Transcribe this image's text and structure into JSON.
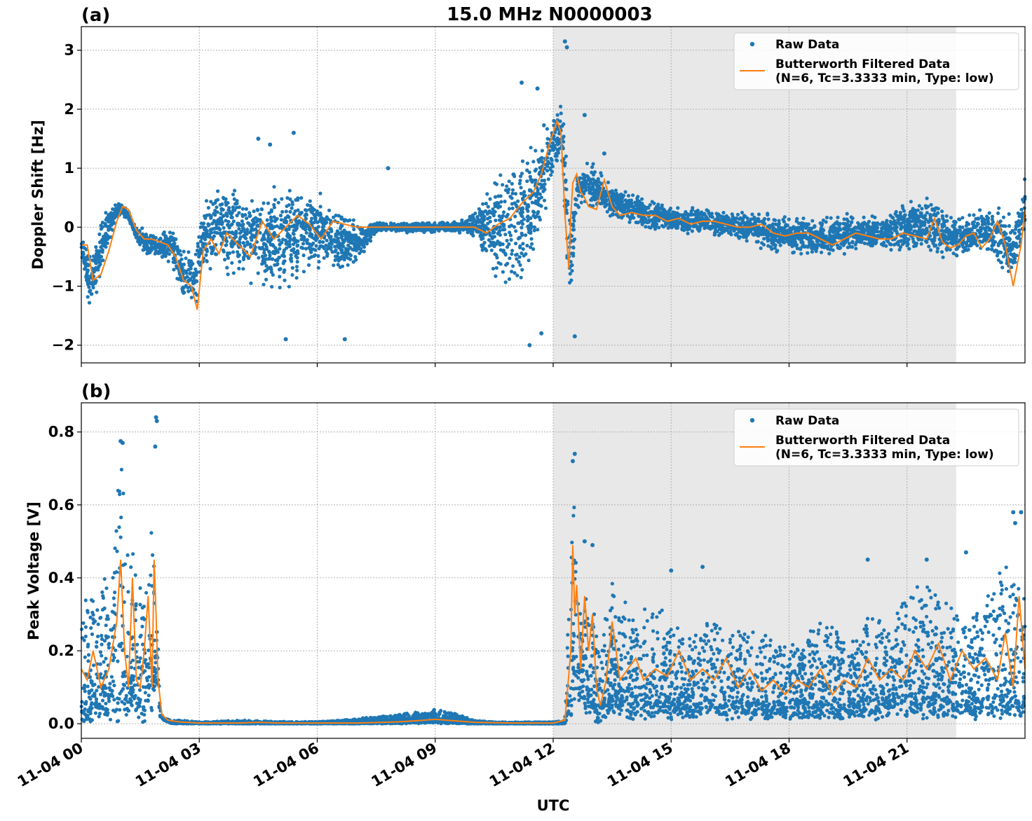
{
  "figure_title": "15.0 MHz N0000003",
  "xlabel": "UTC",
  "x_tick_labels": [
    "11-04 00",
    "11-04 03",
    "11-04 06",
    "11-04 09",
    "11-04 12",
    "11-04 15",
    "11-04 18",
    "11-04 21"
  ],
  "colors": {
    "raw": "#1f77b4",
    "filtered": "#ff7f0e",
    "shade": "#e8e8e8",
    "grid": "#b0b0b0"
  },
  "chart_data": [
    {
      "type": "scatter",
      "panel_label": "(a)",
      "title": "15.0 MHz N0000003",
      "xlabel": "UTC",
      "ylabel": "Doppler Shift [Hz]",
      "xlim_hours": [
        0,
        24
      ],
      "ylim": [
        -2.3,
        3.4
      ],
      "yticks": [
        -2,
        -1,
        0,
        1,
        2,
        3
      ],
      "ytick_labels": [
        "−2",
        "−1",
        "0",
        "1",
        "2",
        "3"
      ],
      "shaded_region_hours": [
        12.0,
        22.25
      ],
      "grid": true,
      "legend_position": "top-right",
      "legend": [
        "Raw Data",
        "Butterworth Filtered Data",
        "(N=6, Tc=3.3333 min, Type: low)"
      ],
      "series": [
        {
          "name": "Raw Data",
          "kind": "points",
          "envelope": {
            "x": [
              0,
              0.2,
              0.4,
              0.6,
              0.8,
              1.0,
              1.2,
              1.4,
              1.6,
              2.0,
              2.3,
              2.6,
              2.9,
              3.1,
              3.5,
              4.0,
              4.5,
              5.0,
              5.5,
              6.0,
              6.5,
              7.0,
              7.5,
              8.0,
              8.5,
              9.0,
              9.5,
              10.0,
              10.5,
              11.0,
              11.5,
              11.9,
              12.2,
              12.35,
              12.45,
              12.6,
              12.9,
              13.5,
              14.0,
              14.5,
              15.0,
              15.5,
              16.0,
              16.5,
              17.0,
              17.5,
              18.0,
              18.5,
              19.0,
              19.5,
              20.0,
              20.5,
              21.0,
              21.5,
              22.0,
              22.5,
              23.0,
              23.4,
              23.7,
              24.0
            ],
            "low": [
              -0.6,
              -1.5,
              -1.2,
              -0.6,
              -0.1,
              0.2,
              0.1,
              -0.3,
              -0.5,
              -0.6,
              -0.7,
              -1.4,
              -1.6,
              -0.8,
              -0.8,
              -1.0,
              -1.1,
              -1.4,
              -1.0,
              -0.8,
              -0.9,
              -0.8,
              -0.1,
              -0.1,
              -0.1,
              -0.1,
              -0.1,
              -0.2,
              -1.0,
              -1.2,
              -0.8,
              0.5,
              1.0,
              -0.8,
              -1.5,
              0.3,
              0.3,
              0.1,
              0.0,
              -0.1,
              -0.1,
              -0.2,
              -0.2,
              -0.2,
              -0.3,
              -0.5,
              -0.5,
              -0.6,
              -0.6,
              -0.5,
              -0.4,
              -0.5,
              -0.5,
              -0.5,
              -0.6,
              -0.6,
              -0.5,
              -0.9,
              -1.1,
              -0.1
            ],
            "high": [
              0.0,
              -0.4,
              0.0,
              0.3,
              0.45,
              0.45,
              0.3,
              0.05,
              0.0,
              -0.1,
              0.1,
              -0.3,
              -0.2,
              0.5,
              0.8,
              0.8,
              0.9,
              0.9,
              0.8,
              0.7,
              0.4,
              0.2,
              0.1,
              0.1,
              0.1,
              0.1,
              0.1,
              0.3,
              0.9,
              1.4,
              1.6,
              2.0,
              2.3,
              1.5,
              0.2,
              1.0,
              1.2,
              0.8,
              0.6,
              0.5,
              0.4,
              0.4,
              0.4,
              0.3,
              0.3,
              0.3,
              0.2,
              0.3,
              0.2,
              0.3,
              0.2,
              0.3,
              0.5,
              0.6,
              0.3,
              0.3,
              0.4,
              0.5,
              0.3,
              0.9
            ]
          },
          "outliers": [
            [
              4.5,
              1.5
            ],
            [
              4.8,
              1.4
            ],
            [
              5.4,
              1.6
            ],
            [
              5.2,
              -1.9
            ],
            [
              6.7,
              -1.9
            ],
            [
              7.8,
              1.0
            ],
            [
              11.2,
              2.45
            ],
            [
              11.6,
              2.35
            ],
            [
              11.4,
              -2.0
            ],
            [
              11.7,
              -1.8
            ],
            [
              12.3,
              3.15
            ],
            [
              12.35,
              3.05
            ],
            [
              12.55,
              -1.85
            ],
            [
              12.8,
              1.9
            ],
            [
              13.3,
              1.25
            ]
          ]
        },
        {
          "name": "Butterworth Filtered Data",
          "kind": "line",
          "x": [
            0,
            0.15,
            0.3,
            0.5,
            0.7,
            0.9,
            1.05,
            1.2,
            1.4,
            1.6,
            1.8,
            2.0,
            2.2,
            2.4,
            2.6,
            2.8,
            2.95,
            3.1,
            3.3,
            3.5,
            3.7,
            4.0,
            4.3,
            4.6,
            4.9,
            5.2,
            5.5,
            5.8,
            6.1,
            6.4,
            6.7,
            7.0,
            7.5,
            8.0,
            8.5,
            9.0,
            9.5,
            10.0,
            10.3,
            10.6,
            10.9,
            11.2,
            11.5,
            11.7,
            11.9,
            12.1,
            12.2,
            12.3,
            12.4,
            12.45,
            12.5,
            12.6,
            12.7,
            12.8,
            12.9,
            13.1,
            13.3,
            13.5,
            13.7,
            14.0,
            14.3,
            14.6,
            14.9,
            15.2,
            15.5,
            15.8,
            16.1,
            16.4,
            16.7,
            17.0,
            17.3,
            17.6,
            17.9,
            18.2,
            18.5,
            18.8,
            19.1,
            19.4,
            19.7,
            20.0,
            20.3,
            20.6,
            20.9,
            21.2,
            21.5,
            21.7,
            21.9,
            22.1,
            22.3,
            22.5,
            22.7,
            22.9,
            23.1,
            23.3,
            23.5,
            23.7,
            23.9,
            24.0
          ],
          "y": [
            -0.3,
            -0.3,
            -0.9,
            -0.8,
            -0.4,
            0.1,
            0.35,
            0.3,
            -0.05,
            -0.2,
            -0.2,
            -0.25,
            -0.3,
            -0.5,
            -0.9,
            -1.0,
            -1.4,
            -0.4,
            -0.2,
            -0.45,
            -0.1,
            -0.3,
            -0.5,
            0.1,
            -0.2,
            0.0,
            0.2,
            0.05,
            -0.2,
            0.1,
            0.05,
            0.0,
            0.0,
            0.0,
            0.0,
            0.0,
            0.0,
            0.0,
            -0.1,
            0.05,
            0.15,
            0.4,
            0.6,
            0.9,
            1.4,
            1.8,
            1.6,
            0.2,
            -0.7,
            0.2,
            0.75,
            0.9,
            0.6,
            0.5,
            0.35,
            0.3,
            0.8,
            0.35,
            0.2,
            0.25,
            0.2,
            0.2,
            0.1,
            0.15,
            0.05,
            0.1,
            0.1,
            0.05,
            0.0,
            0.0,
            0.05,
            -0.1,
            -0.15,
            -0.1,
            -0.1,
            -0.2,
            -0.3,
            -0.2,
            -0.1,
            -0.15,
            -0.2,
            -0.2,
            -0.1,
            -0.15,
            -0.2,
            0.15,
            -0.25,
            -0.35,
            -0.3,
            -0.15,
            -0.1,
            -0.35,
            -0.2,
            0.1,
            -0.3,
            -1.0,
            -0.3,
            0.3
          ]
        }
      ]
    },
    {
      "type": "scatter",
      "panel_label": "(b)",
      "xlabel": "UTC",
      "ylabel": "Peak Voltage [V]",
      "xlim_hours": [
        0,
        24
      ],
      "ylim": [
        -0.04,
        0.88
      ],
      "yticks": [
        0.0,
        0.2,
        0.4,
        0.6,
        0.8
      ],
      "ytick_labels": [
        "0.0",
        "0.2",
        "0.4",
        "0.6",
        "0.8"
      ],
      "shaded_region_hours": [
        12.0,
        22.25
      ],
      "grid": true,
      "legend_position": "top-right",
      "legend": [
        "Raw Data",
        "Butterworth Filtered Data",
        "(N=6, Tc=3.3333 min, Type: low)"
      ],
      "series": [
        {
          "name": "Raw Data",
          "kind": "points",
          "envelope": {
            "x": [
              0,
              0.2,
              0.4,
              0.6,
              0.8,
              1.0,
              1.2,
              1.4,
              1.6,
              1.8,
              1.9,
              2.0,
              2.1,
              2.3,
              2.6,
              3.0,
              4.0,
              5.0,
              6.0,
              6.5,
              7.0,
              7.5,
              8.0,
              8.5,
              9.0,
              9.3,
              9.6,
              10.0,
              10.5,
              11.0,
              11.5,
              12.0,
              12.3,
              12.45,
              12.5,
              12.6,
              12.8,
              13.0,
              13.2,
              13.4,
              13.6,
              14.0,
              14.5,
              15.0,
              15.5,
              16.0,
              16.5,
              17.0,
              17.5,
              18.0,
              18.5,
              19.0,
              19.5,
              20.0,
              20.5,
              21.0,
              21.5,
              22.0,
              22.5,
              23.0,
              23.5,
              24.0
            ],
            "low": [
              0.0,
              0.0,
              0.02,
              0.01,
              0.0,
              0.0,
              0.02,
              0.01,
              0.0,
              0.02,
              0.1,
              0.02,
              0.01,
              0.0,
              0.0,
              0.0,
              0.0,
              0.0,
              0.0,
              0.0,
              0.0,
              0.0,
              0.0,
              0.0,
              0.0,
              0.0,
              0.0,
              0.0,
              0.0,
              0.0,
              0.0,
              0.0,
              0.0,
              0.0,
              0.05,
              0.05,
              0.03,
              0.01,
              0.0,
              0.02,
              0.02,
              0.01,
              0.01,
              0.01,
              0.01,
              0.01,
              0.01,
              0.01,
              0.01,
              0.01,
              0.01,
              0.01,
              0.01,
              0.01,
              0.01,
              0.01,
              0.01,
              0.01,
              0.01,
              0.01,
              0.01,
              0.01
            ],
            "high": [
              0.3,
              0.4,
              0.35,
              0.45,
              0.55,
              0.75,
              0.45,
              0.5,
              0.35,
              0.6,
              0.45,
              0.04,
              0.015,
              0.01,
              0.01,
              0.005,
              0.01,
              0.006,
              0.006,
              0.01,
              0.015,
              0.02,
              0.025,
              0.035,
              0.04,
              0.035,
              0.025,
              0.01,
              0.005,
              0.005,
              0.005,
              0.005,
              0.01,
              0.6,
              0.7,
              0.5,
              0.35,
              0.35,
              0.2,
              0.38,
              0.4,
              0.3,
              0.35,
              0.3,
              0.25,
              0.3,
              0.25,
              0.28,
              0.25,
              0.22,
              0.25,
              0.3,
              0.22,
              0.32,
              0.3,
              0.35,
              0.42,
              0.35,
              0.3,
              0.38,
              0.45,
              0.35
            ]
          },
          "outliers": [
            [
              1.0,
              0.775
            ],
            [
              1.05,
              0.77
            ],
            [
              1.9,
              0.84
            ],
            [
              1.92,
              0.83
            ],
            [
              1.88,
              0.76
            ],
            [
              12.55,
              0.74
            ],
            [
              12.5,
              0.72
            ],
            [
              12.8,
              0.5
            ],
            [
              13.0,
              0.49
            ],
            [
              15.0,
              0.42
            ],
            [
              15.8,
              0.43
            ],
            [
              20.0,
              0.45
            ],
            [
              21.5,
              0.45
            ],
            [
              22.5,
              0.47
            ],
            [
              23.7,
              0.58
            ],
            [
              23.9,
              0.58
            ],
            [
              23.75,
              0.55
            ]
          ]
        },
        {
          "name": "Butterworth Filtered Data",
          "kind": "line",
          "x": [
            0,
            0.15,
            0.3,
            0.5,
            0.7,
            0.9,
            1.0,
            1.1,
            1.2,
            1.3,
            1.4,
            1.5,
            1.6,
            1.7,
            1.8,
            1.85,
            1.9,
            1.95,
            2.05,
            2.2,
            2.5,
            3.0,
            4.0,
            4.5,
            5.0,
            6.0,
            7.0,
            8.0,
            8.5,
            9.0,
            9.5,
            10.0,
            11.0,
            12.0,
            12.3,
            12.45,
            12.5,
            12.55,
            12.6,
            12.7,
            12.8,
            12.9,
            13.0,
            13.1,
            13.2,
            13.35,
            13.5,
            13.7,
            13.9,
            14.1,
            14.3,
            14.6,
            14.9,
            15.2,
            15.5,
            15.8,
            16.1,
            16.4,
            16.7,
            17.0,
            17.3,
            17.6,
            17.9,
            18.2,
            18.5,
            18.8,
            19.1,
            19.4,
            19.7,
            20.0,
            20.3,
            20.6,
            20.9,
            21.2,
            21.5,
            21.8,
            22.1,
            22.4,
            22.7,
            23.0,
            23.3,
            23.5,
            23.7,
            23.85,
            24.0
          ],
          "y": [
            0.15,
            0.12,
            0.2,
            0.1,
            0.15,
            0.28,
            0.45,
            0.2,
            0.1,
            0.4,
            0.12,
            0.1,
            0.2,
            0.35,
            0.1,
            0.45,
            0.3,
            0.12,
            0.025,
            0.01,
            0.005,
            0.002,
            0.002,
            0.004,
            0.002,
            0.002,
            0.002,
            0.005,
            0.008,
            0.012,
            0.008,
            0.004,
            0.002,
            0.002,
            0.01,
            0.2,
            0.49,
            0.3,
            0.38,
            0.15,
            0.35,
            0.2,
            0.3,
            0.1,
            0.05,
            0.12,
            0.28,
            0.12,
            0.15,
            0.18,
            0.12,
            0.15,
            0.13,
            0.2,
            0.12,
            0.15,
            0.12,
            0.18,
            0.1,
            0.15,
            0.09,
            0.12,
            0.08,
            0.12,
            0.1,
            0.15,
            0.08,
            0.12,
            0.1,
            0.18,
            0.12,
            0.15,
            0.12,
            0.2,
            0.15,
            0.22,
            0.12,
            0.2,
            0.15,
            0.18,
            0.12,
            0.25,
            0.1,
            0.35,
            0.15
          ]
        }
      ]
    }
  ]
}
